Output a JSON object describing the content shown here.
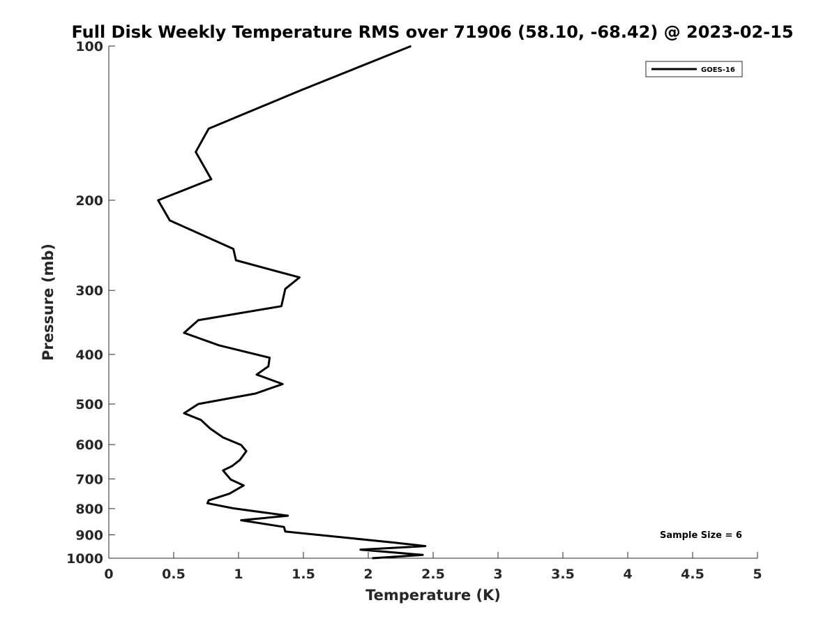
{
  "chart_data": {
    "type": "line",
    "title": "Full Disk Weekly Temperature RMS over 71906 (58.10, -68.42) @ 2023-02-15",
    "xlabel": "Temperature (K)",
    "ylabel": "Pressure (mb)",
    "xlim": [
      0,
      5
    ],
    "ylim": [
      100,
      1000
    ],
    "yscale": "log",
    "y_reversed": true,
    "grid": false,
    "x_ticks": [
      0,
      0.5,
      1,
      1.5,
      2,
      2.5,
      3,
      3.5,
      4,
      4.5,
      5
    ],
    "x_tick_labels": [
      "0",
      "0.5",
      "1",
      "1.5",
      "2",
      "2.5",
      "3",
      "3.5",
      "4",
      "4.5",
      "5"
    ],
    "y_ticks": [
      100,
      200,
      300,
      400,
      500,
      600,
      700,
      800,
      900,
      1000
    ],
    "y_tick_labels": [
      "100",
      "200",
      "300",
      "400",
      "500",
      "600",
      "700",
      "800",
      "900",
      "1000"
    ],
    "legend": {
      "placement": "top-right",
      "entries": [
        "GOES-16"
      ]
    },
    "annotation": "Sample Size = 6",
    "series": [
      {
        "name": "GOES-16",
        "color": "#000000",
        "x": [
          2.33,
          1.48,
          0.77,
          0.67,
          0.79,
          0.38,
          0.47,
          0.96,
          0.98,
          1.47,
          1.36,
          1.33,
          0.69,
          0.58,
          0.85,
          1.24,
          1.23,
          1.14,
          1.34,
          1.13,
          0.69,
          0.58,
          0.71,
          0.78,
          0.88,
          1.02,
          1.06,
          1.01,
          0.95,
          0.88,
          0.94,
          1.04,
          0.93,
          0.77,
          0.76,
          0.96,
          1.38,
          1.02,
          1.35,
          1.36,
          2.2,
          2.44,
          1.94,
          2.42,
          2.03
        ],
        "y": [
          100,
          122,
          145,
          161,
          182,
          200,
          219,
          249,
          262,
          283,
          298,
          322,
          343,
          363,
          384,
          406,
          422,
          438,
          457,
          477,
          500,
          521,
          537,
          558,
          581,
          601,
          618,
          643,
          661,
          674,
          702,
          721,
          748,
          771,
          781,
          799,
          826,
          843,
          869,
          887,
          932,
          947,
          962,
          985,
          1000
        ]
      }
    ]
  }
}
